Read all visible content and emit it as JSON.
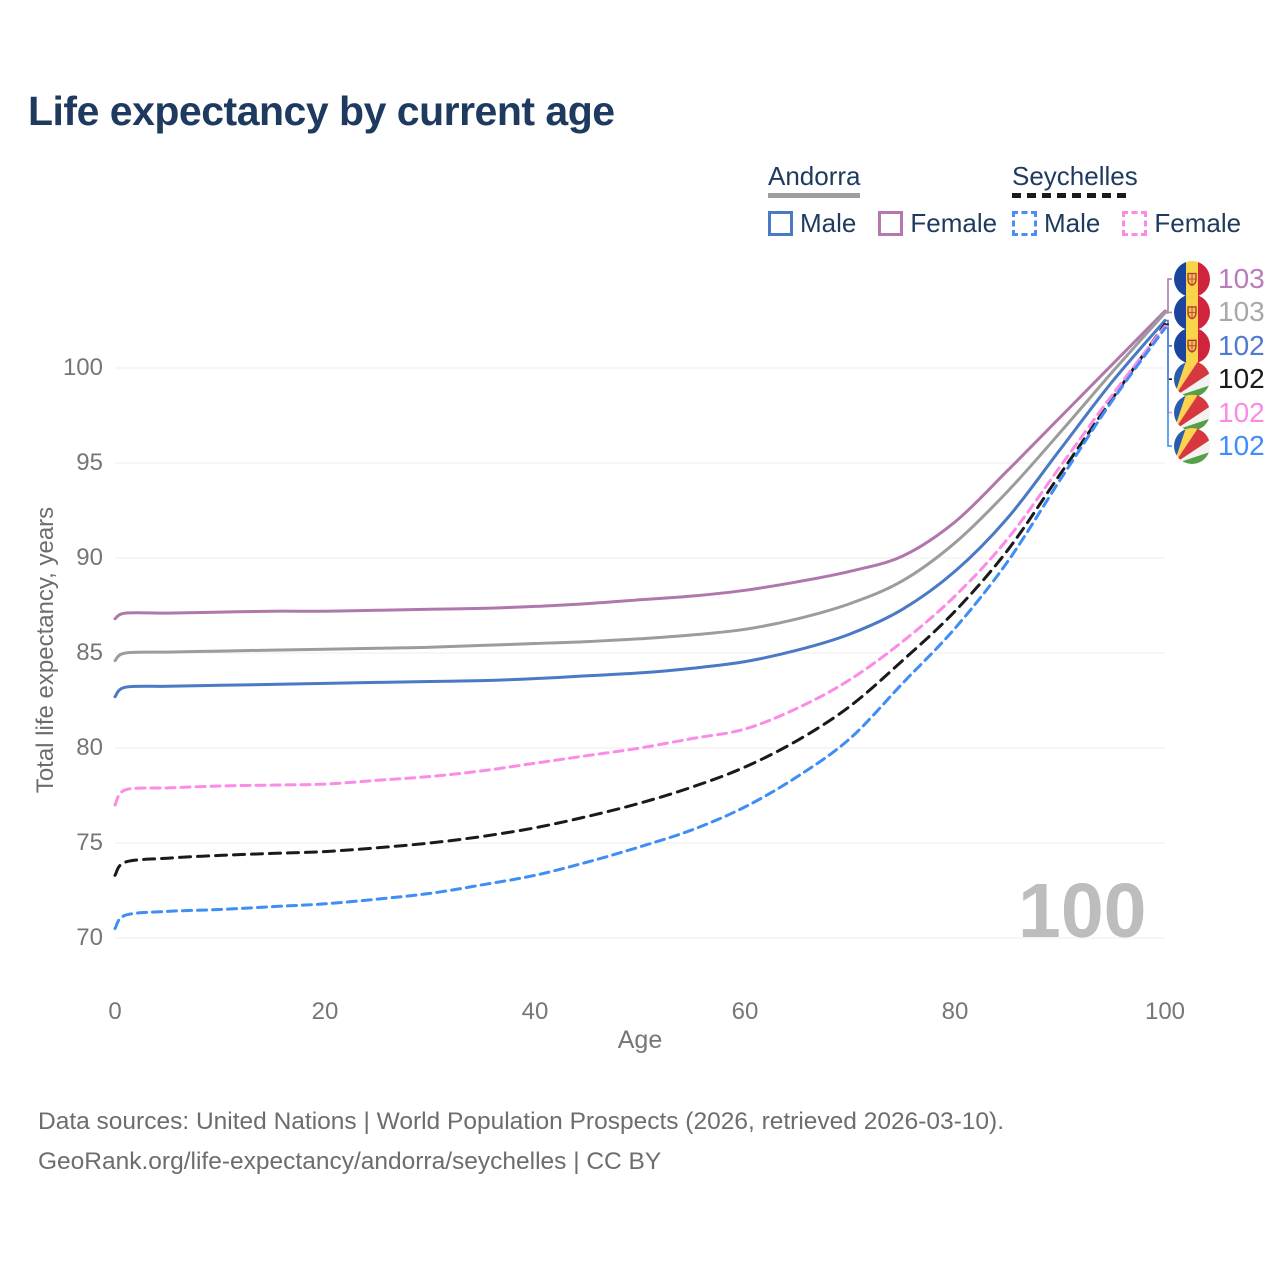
{
  "page": {
    "title": "Life expectancy by current age",
    "watermark": "100",
    "footer_line1": "Data sources: United Nations | World Population Prospects (2026, retrieved 2026-03-10).",
    "footer_line2": "GeoRank.org/life-expectancy/andorra/seychelles | CC BY"
  },
  "legend": {
    "groups": [
      {
        "label": "Andorra",
        "line_style": "solid",
        "line_color": "#9e9e9e",
        "items": [
          {
            "label": "Male",
            "color": "#4a79c5",
            "box_style": "solid"
          },
          {
            "label": "Female",
            "color": "#b478af",
            "box_style": "solid"
          }
        ]
      },
      {
        "label": "Seychelles",
        "line_style": "dashed",
        "line_color": "#1a1a1a",
        "items": [
          {
            "label": "Male",
            "color": "#4b8ef5",
            "box_style": "dashed"
          },
          {
            "label": "Female",
            "color": "#fc8be0",
            "box_style": "dashed"
          }
        ]
      }
    ]
  },
  "chart_data": {
    "type": "line",
    "title": "Life expectancy by current age",
    "xlabel": "Age",
    "ylabel": "Total life expectancy, years",
    "xlim": [
      0,
      100
    ],
    "ylim": [
      68.5,
      103.5
    ],
    "x_ticks": [
      0,
      20,
      40,
      60,
      80,
      100
    ],
    "y_ticks": [
      70,
      75,
      80,
      85,
      90,
      95,
      100
    ],
    "grid": true,
    "legend_position": "top-right",
    "ages": [
      0,
      1,
      5,
      10,
      15,
      20,
      25,
      30,
      35,
      40,
      45,
      50,
      55,
      60,
      65,
      70,
      75,
      80,
      85,
      90,
      95,
      100
    ],
    "series": [
      {
        "name": "Andorra Female",
        "country": "Andorra",
        "sex": "Female",
        "color": "#b077ad",
        "line_style": "solid",
        "flag": "andorra",
        "end_label": "103",
        "end_label_color": "#b97cba",
        "values": [
          86.8,
          87.1,
          87.1,
          87.15,
          87.2,
          87.2,
          87.25,
          87.3,
          87.35,
          87.45,
          87.6,
          87.8,
          88.0,
          88.3,
          88.75,
          89.3,
          90.1,
          91.9,
          94.6,
          97.4,
          100.2,
          103.0
        ]
      },
      {
        "name": "Andorra Both sexes",
        "country": "Andorra",
        "sex": "Both",
        "color": "#9c9c9c",
        "line_style": "solid",
        "flag": "andorra",
        "end_label": "103",
        "end_label_color": "#a8a8a8",
        "values": [
          84.6,
          85.0,
          85.05,
          85.1,
          85.15,
          85.2,
          85.25,
          85.3,
          85.4,
          85.5,
          85.6,
          85.75,
          85.95,
          86.25,
          86.8,
          87.6,
          88.8,
          90.8,
          93.5,
          96.6,
          99.8,
          102.9
        ]
      },
      {
        "name": "Andorra Male",
        "country": "Andorra",
        "sex": "Male",
        "color": "#4a79c5",
        "line_style": "solid",
        "flag": "andorra",
        "end_label": "102",
        "end_label_color": "#4e7ad1",
        "values": [
          82.7,
          83.2,
          83.25,
          83.3,
          83.35,
          83.4,
          83.45,
          83.5,
          83.55,
          83.65,
          83.8,
          83.95,
          84.2,
          84.55,
          85.15,
          86.0,
          87.3,
          89.3,
          92.1,
          95.7,
          99.3,
          102.5
        ]
      },
      {
        "name": "Seychelles Both sexes",
        "country": "Seychelles",
        "sex": "Both",
        "color": "#1a1a1a",
        "line_style": "dashed",
        "flag": "seychelles",
        "end_label": "102",
        "end_label_color": "#1a1a1a",
        "values": [
          73.3,
          74.0,
          74.2,
          74.35,
          74.45,
          74.55,
          74.75,
          75.0,
          75.35,
          75.8,
          76.4,
          77.1,
          77.95,
          79.0,
          80.4,
          82.2,
          84.6,
          87.2,
          90.4,
          94.4,
          98.4,
          102.3
        ]
      },
      {
        "name": "Seychelles Female",
        "country": "Seychelles",
        "sex": "Female",
        "color": "#fb8ce5",
        "line_style": "dashed",
        "flag": "seychelles",
        "end_label": "102",
        "end_label_color": "#fb8ae5",
        "values": [
          77.0,
          77.8,
          77.9,
          78.0,
          78.05,
          78.1,
          78.3,
          78.5,
          78.8,
          79.2,
          79.6,
          80.0,
          80.5,
          81.0,
          82.1,
          83.6,
          85.6,
          88.0,
          91.0,
          94.8,
          98.6,
          102.2
        ]
      },
      {
        "name": "Seychelles Male",
        "country": "Seychelles",
        "sex": "Male",
        "color": "#3f8df6",
        "line_style": "dashed",
        "flag": "seychelles",
        "end_label": "102",
        "end_label_color": "#3f8dfd",
        "values": [
          70.5,
          71.2,
          71.4,
          71.5,
          71.65,
          71.8,
          72.05,
          72.35,
          72.8,
          73.3,
          74.0,
          74.8,
          75.7,
          76.9,
          78.5,
          80.5,
          83.4,
          86.3,
          89.8,
          94.1,
          98.3,
          102.1
        ]
      }
    ],
    "flag_colors": {
      "andorra": {
        "blue": "#1b449c",
        "yellow": "#f8d548",
        "red": "#d0243e",
        "emblem_fill": "#e9c34f",
        "emblem_stroke": "#b3342f"
      },
      "seychelles": {
        "blue": "#2a5cab",
        "yellow": "#fbd34d",
        "red": "#d7373f",
        "white": "#f2f2f2",
        "green": "#55a046"
      }
    },
    "grid_color": "#ececec",
    "tick_color": "#767676",
    "watermark_color": "#bdbdbd"
  }
}
